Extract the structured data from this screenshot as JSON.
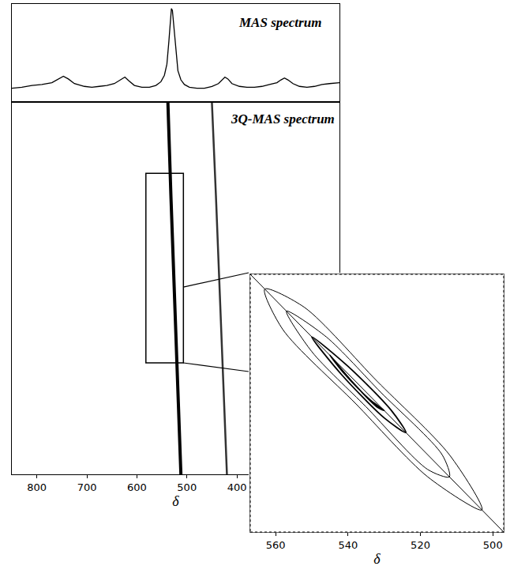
{
  "chart_data": [
    {
      "type": "line",
      "title": "MAS spectrum",
      "color": "#000000",
      "grid": false,
      "tick_labels": false,
      "xlim": [
        850,
        195
      ],
      "ylim": [
        0,
        105
      ],
      "x": [
        850,
        830,
        810,
        790,
        770,
        757,
        747,
        737,
        725,
        705,
        690,
        675,
        660,
        645,
        632,
        624,
        616,
        605,
        590,
        575,
        562,
        552,
        545,
        540,
        536,
        533,
        531,
        529,
        526,
        522,
        518,
        512,
        505,
        495,
        480,
        465,
        450,
        437,
        430,
        424,
        418,
        410,
        395,
        380,
        365,
        350,
        335,
        320,
        312,
        305,
        298,
        288,
        275,
        260,
        245,
        230,
        215,
        195
      ],
      "values": [
        14,
        15,
        17,
        18,
        20,
        24,
        27,
        24,
        19,
        16,
        15,
        16,
        17,
        19,
        23,
        26,
        22,
        17,
        15,
        15,
        17,
        21,
        28,
        40,
        65,
        88,
        100,
        98,
        80,
        52,
        33,
        23,
        18,
        15,
        14,
        14,
        16,
        19,
        23,
        26,
        24,
        19,
        16,
        15,
        15,
        16,
        18,
        20,
        23,
        25,
        23,
        19,
        16,
        15,
        16,
        18,
        19,
        20
      ]
    },
    {
      "type": "line",
      "title": "3Q-MAS spectrum",
      "x_label": "δ",
      "grid": false,
      "tick_labels": "x",
      "xlim": [
        850,
        195
      ],
      "xticks": [
        800,
        700,
        600,
        500,
        400
      ],
      "ylim": [
        0,
        100
      ],
      "series": [
        {
          "color": "#000000",
          "x": [
            512,
            519,
            526,
            532,
            538
          ],
          "values": [
            0,
            25,
            50,
            75,
            100
          ]
        },
        {
          "color": "#333333",
          "x": [
            420,
            427,
            434,
            442,
            450
          ],
          "values": [
            0,
            25,
            50,
            75,
            100
          ]
        }
      ],
      "box": {
        "x": [
          582,
          507
        ],
        "y": [
          30,
          81
        ]
      }
    },
    {
      "type": "line",
      "x_label": "δ",
      "grid": false,
      "tick_labels": "x",
      "xlim": [
        567,
        497
      ],
      "xticks": [
        560,
        540,
        520,
        500
      ],
      "ylim": [
        497,
        567
      ],
      "diagonal": {
        "x": [
          567,
          497
        ],
        "y": [
          567,
          497
        ]
      },
      "series": [
        {
          "color": "#000000",
          "x": [
            563,
            558,
            538,
            518,
            503,
            512,
            532,
            552,
            563
          ],
          "values": [
            563,
            552,
            532,
            512,
            503,
            518,
            538,
            558,
            563
          ]
        },
        {
          "color": "#000000",
          "x": [
            557,
            550,
            535,
            518,
            512,
            514,
            531,
            546,
            557
          ],
          "values": [
            557,
            546,
            531,
            514,
            512,
            518,
            535,
            550,
            557
          ]
        },
        {
          "color": "#000000",
          "x": [
            550,
            542,
            530,
            524,
            528,
            540,
            550
          ],
          "values": [
            550,
            540,
            528,
            524,
            530,
            542,
            550
          ]
        },
        {
          "color": "#000000",
          "x": [
            545,
            539,
            532,
            530,
            534,
            541,
            545
          ],
          "values": [
            545,
            538,
            531,
            530,
            533,
            540,
            545
          ]
        }
      ]
    }
  ]
}
